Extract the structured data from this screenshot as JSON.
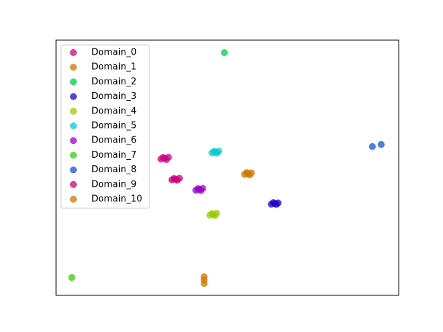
{
  "chart_data": {
    "type": "scatter",
    "xlim": [
      0,
      100
    ],
    "ylim": [
      0,
      100
    ],
    "legend": "upper left",
    "series": [
      {
        "name": "Domain_0",
        "color": "#cc0088",
        "x": [
          30.6,
          31.2,
          31.7,
          32.2,
          32.8
        ],
        "values": [
          53.4,
          54.0,
          53.7,
          53.2,
          54.1
        ]
      },
      {
        "name": "Domain_1",
        "color": "#cc7700",
        "x": [
          55.0,
          55.6,
          56.0,
          56.5,
          57.0
        ],
        "values": [
          47.4,
          48.1,
          47.7,
          47.2,
          48.0
        ]
      },
      {
        "name": "Domain_2",
        "color": "#00cc55",
        "x": [
          49.1
        ],
        "values": [
          95.1
        ]
      },
      {
        "name": "Domain_3",
        "color": "#2200cc",
        "x": [
          62.8,
          63.4,
          63.8,
          64.3,
          64.8
        ],
        "values": [
          35.7,
          36.3,
          36.0,
          35.6,
          36.2
        ]
      },
      {
        "name": "Domain_4",
        "color": "#99cc00",
        "x": [
          44.9,
          45.5,
          45.9,
          46.4,
          46.9
        ],
        "values": [
          31.4,
          32.0,
          31.7,
          31.3,
          32.1
        ]
      },
      {
        "name": "Domain_5",
        "color": "#00cccc",
        "x": [
          45.5,
          46.1,
          46.5,
          47.0,
          47.5
        ],
        "values": [
          55.8,
          56.4,
          56.1,
          55.7,
          56.5
        ]
      },
      {
        "name": "Domain_6",
        "color": "#9900cc",
        "x": [
          40.8,
          41.4,
          41.8,
          42.3,
          42.8
        ],
        "values": [
          41.2,
          41.8,
          41.5,
          41.1,
          41.9
        ]
      },
      {
        "name": "Domain_7",
        "color": "#33cc11",
        "x": [
          4.6
        ],
        "values": [
          7.0
        ]
      },
      {
        "name": "Domain_8",
        "color": "#1155cc",
        "x": [
          92.3,
          94.9
        ],
        "values": [
          58.3,
          59.1
        ]
      },
      {
        "name": "Domain_9",
        "color": "#cc0077",
        "x": [
          33.8,
          34.4,
          34.9,
          35.4,
          36.0
        ],
        "values": [
          45.2,
          45.8,
          45.5,
          45.1,
          45.9
        ]
      },
      {
        "name": "Domain_10",
        "color": "#cc7700",
        "x": [
          43.2,
          43.2,
          43.2
        ],
        "values": [
          7.3,
          6.0,
          4.6
        ]
      }
    ]
  }
}
